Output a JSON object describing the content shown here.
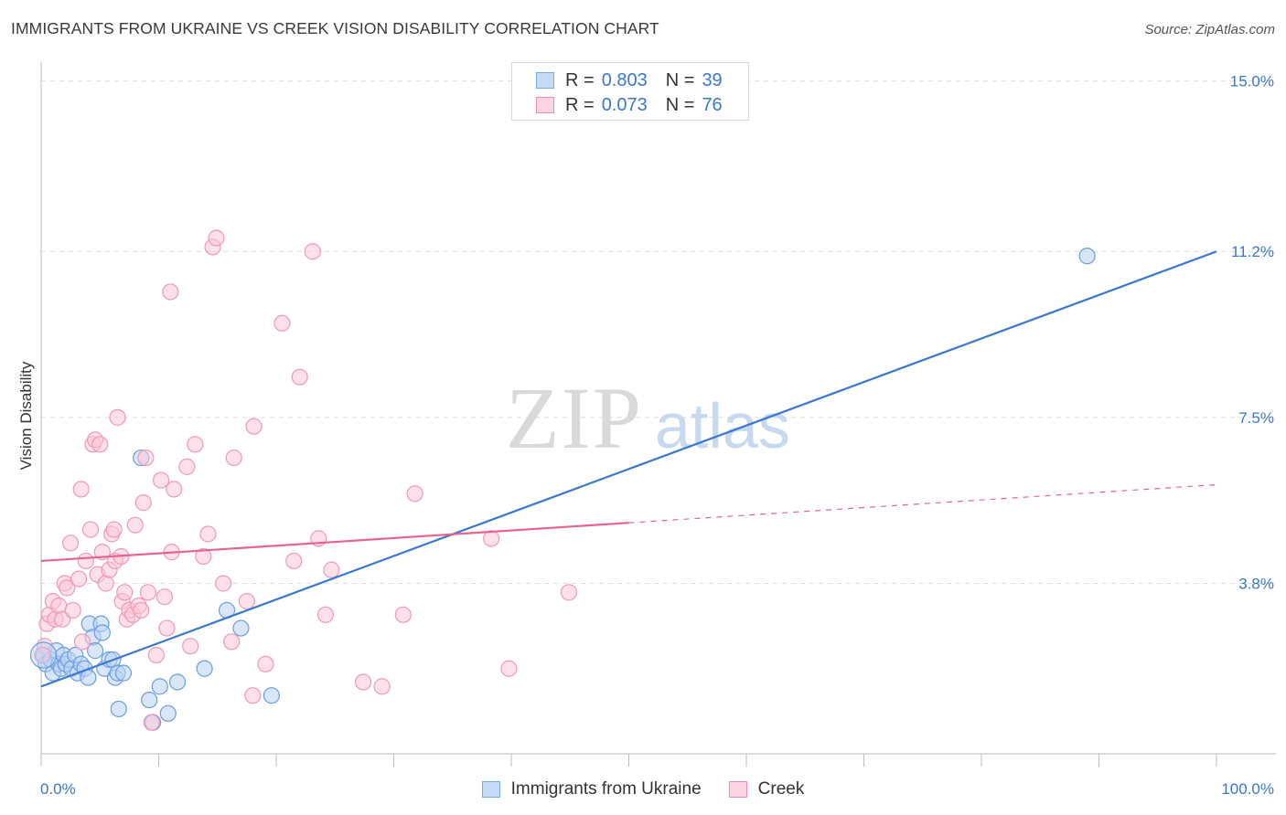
{
  "title": "IMMIGRANTS FROM UKRAINE VS CREEK VISION DISABILITY CORRELATION CHART",
  "source": "Source: ZipAtlas.com",
  "watermark": {
    "zip": "ZIP",
    "atlas": "atlas"
  },
  "legend": {
    "rows": [
      {
        "r_label": "R =",
        "r_value": "0.803",
        "n_label": "N =",
        "n_value": "39",
        "color": "#7aa8e8",
        "fill": "#c5daf5"
      },
      {
        "r_label": "R =",
        "r_value": "0.073",
        "n_label": "N =",
        "n_value": "76",
        "color": "#f08cb0",
        "fill": "#fcd3e0"
      }
    ]
  },
  "bottom_legend": [
    "Immigrants from Ukraine",
    "Creek"
  ],
  "chart_data": {
    "type": "scatter",
    "title": "IMMIGRANTS FROM UKRAINE VS CREEK VISION DISABILITY CORRELATION CHART",
    "xlabel": "",
    "ylabel": "Vision Disability",
    "xlim": [
      0,
      100
    ],
    "ylim": [
      0,
      15.3
    ],
    "x_tick_labels": [
      "0.0%",
      "100.0%"
    ],
    "y_ticks": [
      3.8,
      7.5,
      11.2,
      15.0
    ],
    "y_tick_labels": [
      "3.8%",
      "7.5%",
      "11.2%",
      "15.0%"
    ],
    "grid": true,
    "series": [
      {
        "name": "Immigrants from Ukraine",
        "color": "#3a78d0",
        "fill": "#b9d2f3",
        "stroke": "#6a9ee2",
        "trend": {
          "x0": 0,
          "y0": 1.5,
          "x1": 100,
          "y1": 11.2,
          "dashed_from": null
        },
        "points": [
          [
            0.2,
            2.2
          ],
          [
            0.4,
            2.0
          ],
          [
            0.8,
            2.1
          ],
          [
            1.0,
            1.8
          ],
          [
            1.3,
            2.3
          ],
          [
            1.5,
            2.0
          ],
          [
            1.7,
            1.9
          ],
          [
            1.9,
            2.2
          ],
          [
            2.1,
            2.0
          ],
          [
            2.3,
            2.1
          ],
          [
            2.6,
            1.9
          ],
          [
            2.9,
            2.2
          ],
          [
            3.1,
            1.8
          ],
          [
            3.4,
            2.0
          ],
          [
            3.7,
            1.9
          ],
          [
            4.0,
            1.7
          ],
          [
            4.1,
            2.9
          ],
          [
            4.4,
            2.6
          ],
          [
            4.6,
            2.3
          ],
          [
            5.1,
            2.9
          ],
          [
            5.2,
            2.7
          ],
          [
            5.4,
            1.9
          ],
          [
            5.8,
            2.1
          ],
          [
            6.1,
            2.1
          ],
          [
            6.3,
            1.7
          ],
          [
            6.5,
            1.8
          ],
          [
            6.6,
            1.0
          ],
          [
            7.0,
            1.8
          ],
          [
            9.2,
            1.2
          ],
          [
            9.5,
            0.7
          ],
          [
            10.1,
            1.5
          ],
          [
            10.8,
            0.9
          ],
          [
            11.6,
            1.6
          ],
          [
            13.9,
            1.9
          ],
          [
            15.8,
            3.2
          ],
          [
            17.0,
            2.8
          ],
          [
            19.6,
            1.3
          ],
          [
            8.5,
            6.6
          ],
          [
            89.0,
            11.1
          ]
        ]
      },
      {
        "name": "Creek",
        "color": "#e8648e",
        "fill": "#fbc6d6",
        "stroke": "#f099b6",
        "trend": {
          "x0": 0,
          "y0": 4.3,
          "x1": 100,
          "y1": 6.0,
          "dashed_from": 50
        },
        "points": [
          [
            0.3,
            2.4
          ],
          [
            0.5,
            2.9
          ],
          [
            0.7,
            3.1
          ],
          [
            1.0,
            3.4
          ],
          [
            1.2,
            3.0
          ],
          [
            1.5,
            3.3
          ],
          [
            1.8,
            3.0
          ],
          [
            2.0,
            3.8
          ],
          [
            2.2,
            3.7
          ],
          [
            2.5,
            4.7
          ],
          [
            2.7,
            3.2
          ],
          [
            3.2,
            3.9
          ],
          [
            3.4,
            5.9
          ],
          [
            3.5,
            2.5
          ],
          [
            3.8,
            4.3
          ],
          [
            4.2,
            5.0
          ],
          [
            4.4,
            6.9
          ],
          [
            4.6,
            7.0
          ],
          [
            4.8,
            4.0
          ],
          [
            5.0,
            6.9
          ],
          [
            5.2,
            4.5
          ],
          [
            5.5,
            3.8
          ],
          [
            5.8,
            4.1
          ],
          [
            6.0,
            4.9
          ],
          [
            6.2,
            5.0
          ],
          [
            6.3,
            4.3
          ],
          [
            6.5,
            7.5
          ],
          [
            6.8,
            4.4
          ],
          [
            6.9,
            3.4
          ],
          [
            7.1,
            3.6
          ],
          [
            7.3,
            3.0
          ],
          [
            7.5,
            3.2
          ],
          [
            7.8,
            3.1
          ],
          [
            8.0,
            5.1
          ],
          [
            8.3,
            3.3
          ],
          [
            8.5,
            3.2
          ],
          [
            8.7,
            5.6
          ],
          [
            8.9,
            6.6
          ],
          [
            9.1,
            3.6
          ],
          [
            9.4,
            0.7
          ],
          [
            9.8,
            2.2
          ],
          [
            10.2,
            6.1
          ],
          [
            10.5,
            3.5
          ],
          [
            10.7,
            2.8
          ],
          [
            11.0,
            10.3
          ],
          [
            11.1,
            4.5
          ],
          [
            11.3,
            5.9
          ],
          [
            12.4,
            6.4
          ],
          [
            12.7,
            2.4
          ],
          [
            13.1,
            6.9
          ],
          [
            13.8,
            4.4
          ],
          [
            14.2,
            4.9
          ],
          [
            14.6,
            11.3
          ],
          [
            14.9,
            11.5
          ],
          [
            15.5,
            3.8
          ],
          [
            16.2,
            2.5
          ],
          [
            16.4,
            6.6
          ],
          [
            17.5,
            3.4
          ],
          [
            18.0,
            1.3
          ],
          [
            18.1,
            7.3
          ],
          [
            19.1,
            2.0
          ],
          [
            20.5,
            9.6
          ],
          [
            21.5,
            4.3
          ],
          [
            22.0,
            8.4
          ],
          [
            23.1,
            11.2
          ],
          [
            23.6,
            4.8
          ],
          [
            24.2,
            3.1
          ],
          [
            24.7,
            4.1
          ],
          [
            27.4,
            1.6
          ],
          [
            29.0,
            1.5
          ],
          [
            30.8,
            3.1
          ],
          [
            31.8,
            5.8
          ],
          [
            38.3,
            4.8
          ],
          [
            39.8,
            1.9
          ],
          [
            44.9,
            3.6
          ],
          [
            0.1,
            2.2
          ]
        ]
      }
    ]
  }
}
